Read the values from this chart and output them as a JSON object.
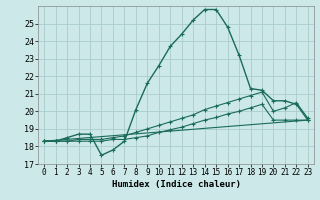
{
  "xlabel": "Humidex (Indice chaleur)",
  "background_color": "#cce8e8",
  "grid_color": "#aacccc",
  "line_color": "#1a6b5a",
  "xlim": [
    -0.5,
    23.5
  ],
  "ylim": [
    17,
    26
  ],
  "yticks": [
    17,
    18,
    19,
    20,
    21,
    22,
    23,
    24,
    25
  ],
  "xticks": [
    0,
    1,
    2,
    3,
    4,
    5,
    6,
    7,
    8,
    9,
    10,
    11,
    12,
    13,
    14,
    15,
    16,
    17,
    18,
    19,
    20,
    21,
    22,
    23
  ],
  "line1_x": [
    0,
    1,
    2,
    3,
    4,
    5,
    6,
    7,
    8,
    9,
    10,
    11,
    12,
    13,
    14,
    15,
    16,
    17,
    18,
    19,
    20,
    21,
    22,
    23
  ],
  "line1_y": [
    18.3,
    18.3,
    18.5,
    18.7,
    18.7,
    17.5,
    17.8,
    18.3,
    20.1,
    21.6,
    22.6,
    23.7,
    24.4,
    25.2,
    25.8,
    25.8,
    24.8,
    23.2,
    21.3,
    21.2,
    20.6,
    20.6,
    20.4,
    19.5
  ],
  "line2_x": [
    0,
    1,
    2,
    3,
    4,
    5,
    6,
    7,
    8,
    9,
    10,
    11,
    12,
    13,
    14,
    15,
    16,
    17,
    18,
    19,
    20,
    21,
    22,
    23
  ],
  "line2_y": [
    18.3,
    18.3,
    18.3,
    18.4,
    18.4,
    18.4,
    18.5,
    18.6,
    18.8,
    19.0,
    19.2,
    19.4,
    19.6,
    19.8,
    20.1,
    20.3,
    20.5,
    20.7,
    20.9,
    21.1,
    20.0,
    20.2,
    20.5,
    19.6
  ],
  "line3_x": [
    0,
    1,
    2,
    3,
    4,
    5,
    6,
    7,
    8,
    9,
    10,
    11,
    12,
    13,
    14,
    15,
    16,
    17,
    18,
    19,
    20,
    21,
    22,
    23
  ],
  "line3_y": [
    18.3,
    18.3,
    18.3,
    18.3,
    18.3,
    18.3,
    18.4,
    18.4,
    18.5,
    18.6,
    18.8,
    18.95,
    19.1,
    19.3,
    19.5,
    19.65,
    19.85,
    20.0,
    20.2,
    20.4,
    19.5,
    19.5,
    19.5,
    19.5
  ],
  "line4_x": [
    0,
    23
  ],
  "line4_y": [
    18.3,
    19.5
  ]
}
